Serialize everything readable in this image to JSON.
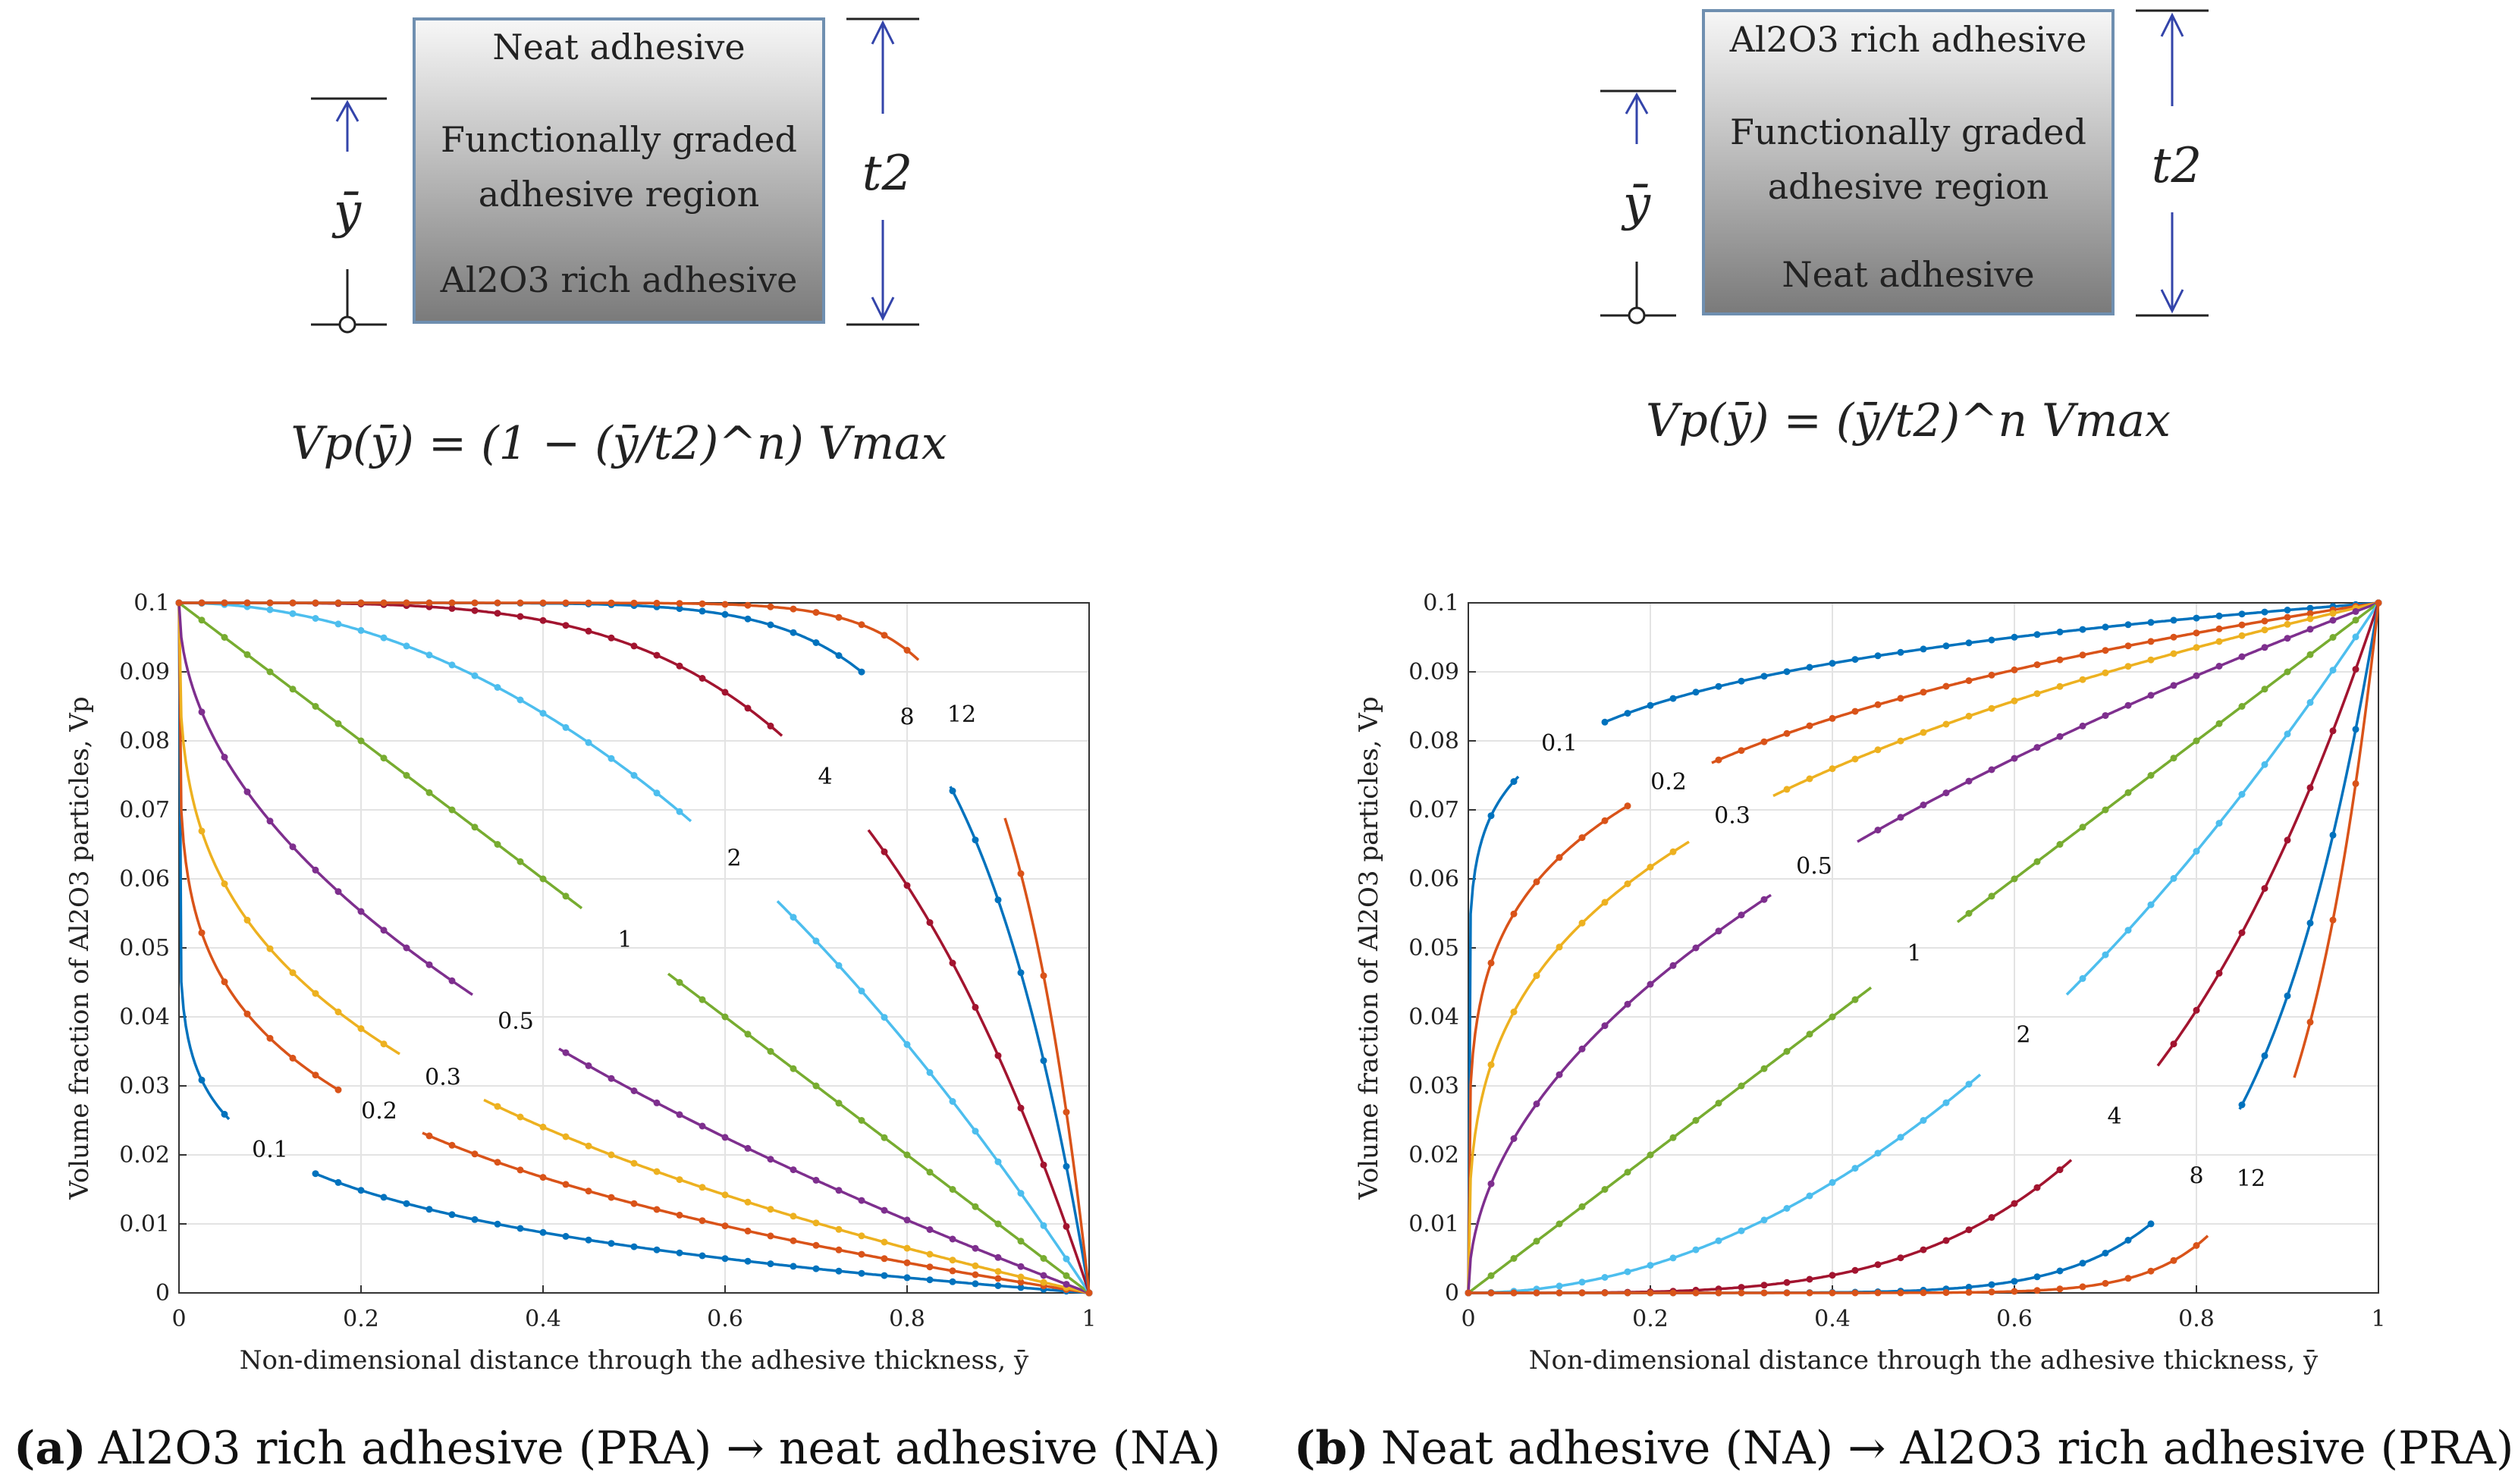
{
  "panel_a": {
    "box": {
      "top": "Neat adhesive",
      "middle_1": "Functionally graded",
      "middle_2": "adhesive region",
      "bottom": "Al2O3 rich adhesive"
    },
    "dim_left": "ȳ",
    "dim_right": "t2",
    "formula": "Vp(ȳ) = (1 − (ȳ/t2)^n) Vmax",
    "caption_tag": "(a)",
    "caption_text": "Al2O3 rich adhesive (PRA) → neat adhesive (NA)"
  },
  "panel_b": {
    "box": {
      "top": "Al2O3 rich adhesive",
      "middle_1": "Functionally graded",
      "middle_2": "adhesive region",
      "bottom": "Neat adhesive"
    },
    "dim_left": "ȳ",
    "dim_right": "t2",
    "formula": "Vp(ȳ) = (ȳ/t2)^n Vmax",
    "caption_tag": "(b)",
    "caption_text": "Neat adhesive (NA) → Al2O3 rich adhesive (PRA)"
  },
  "colors": {
    "0.1": "#0072BD",
    "0.2": "#D95319",
    "0.3": "#EDB120",
    "0.5": "#7E2F8E",
    "1": "#77AC30",
    "2": "#4DBEEE",
    "4": "#A2142F",
    "8": "#0072BD",
    "12": "#D95319"
  },
  "chart_data": [
    {
      "type": "line",
      "id": "a",
      "function": "Vmax*(1 - x^n)",
      "vmax": 0.1,
      "n_values": [
        0.1,
        0.2,
        0.3,
        0.5,
        1,
        2,
        4,
        8,
        12
      ],
      "series_labels": [
        "0.1",
        "0.2",
        "0.3",
        "0.5",
        "1",
        "2",
        "4",
        "8",
        "12"
      ],
      "label_positions_x": [
        0.1,
        0.22,
        0.29,
        0.37,
        0.49,
        0.61,
        0.71,
        0.8,
        0.86
      ],
      "xlabel": "Non-dimensional distance through the adhesive thickness, ȳ",
      "ylabel": "Volume fraction of Al2O3 particles, Vp",
      "xlim": [
        0,
        1
      ],
      "ylim": [
        0,
        0.1
      ],
      "xticks": [
        "0",
        "0.2",
        "0.4",
        "0.6",
        "0.8",
        "1"
      ],
      "yticks": [
        "0",
        "0.01",
        "0.02",
        "0.03",
        "0.04",
        "0.05",
        "0.06",
        "0.07",
        "0.08",
        "0.09",
        "0.1"
      ],
      "grid": true
    },
    {
      "type": "line",
      "id": "b",
      "function": "Vmax*x^n",
      "vmax": 0.1,
      "n_values": [
        0.1,
        0.2,
        0.3,
        0.5,
        1,
        2,
        4,
        8,
        12
      ],
      "series_labels": [
        "0.1",
        "0.2",
        "0.3",
        "0.5",
        "1",
        "2",
        "4",
        "8",
        "12"
      ],
      "label_positions_x": [
        0.1,
        0.22,
        0.29,
        0.38,
        0.49,
        0.61,
        0.71,
        0.8,
        0.86
      ],
      "xlabel": "Non-dimensional distance through the adhesive thickness, ȳ",
      "ylabel": "Volume fraction of Al2O3 particles, Vp",
      "xlim": [
        0,
        1
      ],
      "ylim": [
        0,
        0.1
      ],
      "xticks": [
        "0",
        "0.2",
        "0.4",
        "0.6",
        "0.8",
        "1"
      ],
      "yticks": [
        "0",
        "0.01",
        "0.02",
        "0.03",
        "0.04",
        "0.05",
        "0.06",
        "0.07",
        "0.08",
        "0.09",
        "0.1"
      ],
      "grid": true
    }
  ]
}
